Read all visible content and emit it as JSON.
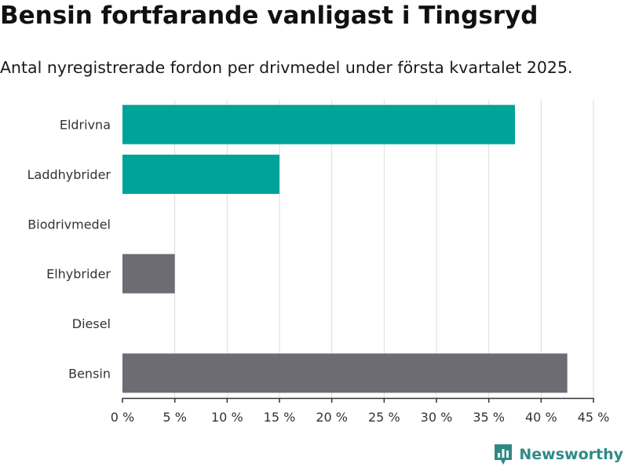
{
  "title": "Bensin fortfarande vanligast i Tingsryd",
  "subtitle": "Antal nyregistrerade fordon per drivmedel under första kvartalet 2025.",
  "brand": {
    "name": "Newsworthy",
    "icon": "bar-chart-logo-icon",
    "color": "#2f8a86"
  },
  "colors": {
    "highlight": "#00a398",
    "neutral": "#6d6c74",
    "grid": "#dddddd",
    "axis": "#333333"
  },
  "chart_data": {
    "type": "bar",
    "orientation": "horizontal",
    "categories": [
      "Eldrivna",
      "Laddhybrider",
      "Biodrivmedel",
      "Elhybrider",
      "Diesel",
      "Bensin"
    ],
    "values": [
      37.5,
      15,
      0,
      5,
      0,
      42.5
    ],
    "bar_colors": [
      "#00a398",
      "#00a398",
      "#00a398",
      "#6d6c74",
      "#6d6c74",
      "#6d6c74"
    ],
    "xlim": [
      0,
      45
    ],
    "x_ticks": [
      0,
      5,
      10,
      15,
      20,
      25,
      30,
      35,
      40,
      45
    ],
    "x_tick_labels": [
      "0 %",
      "5 %",
      "10 %",
      "15 %",
      "20 %",
      "25 %",
      "30 %",
      "35 %",
      "40 %",
      "45 %"
    ],
    "grid": true,
    "xlabel": "",
    "ylabel": ""
  }
}
